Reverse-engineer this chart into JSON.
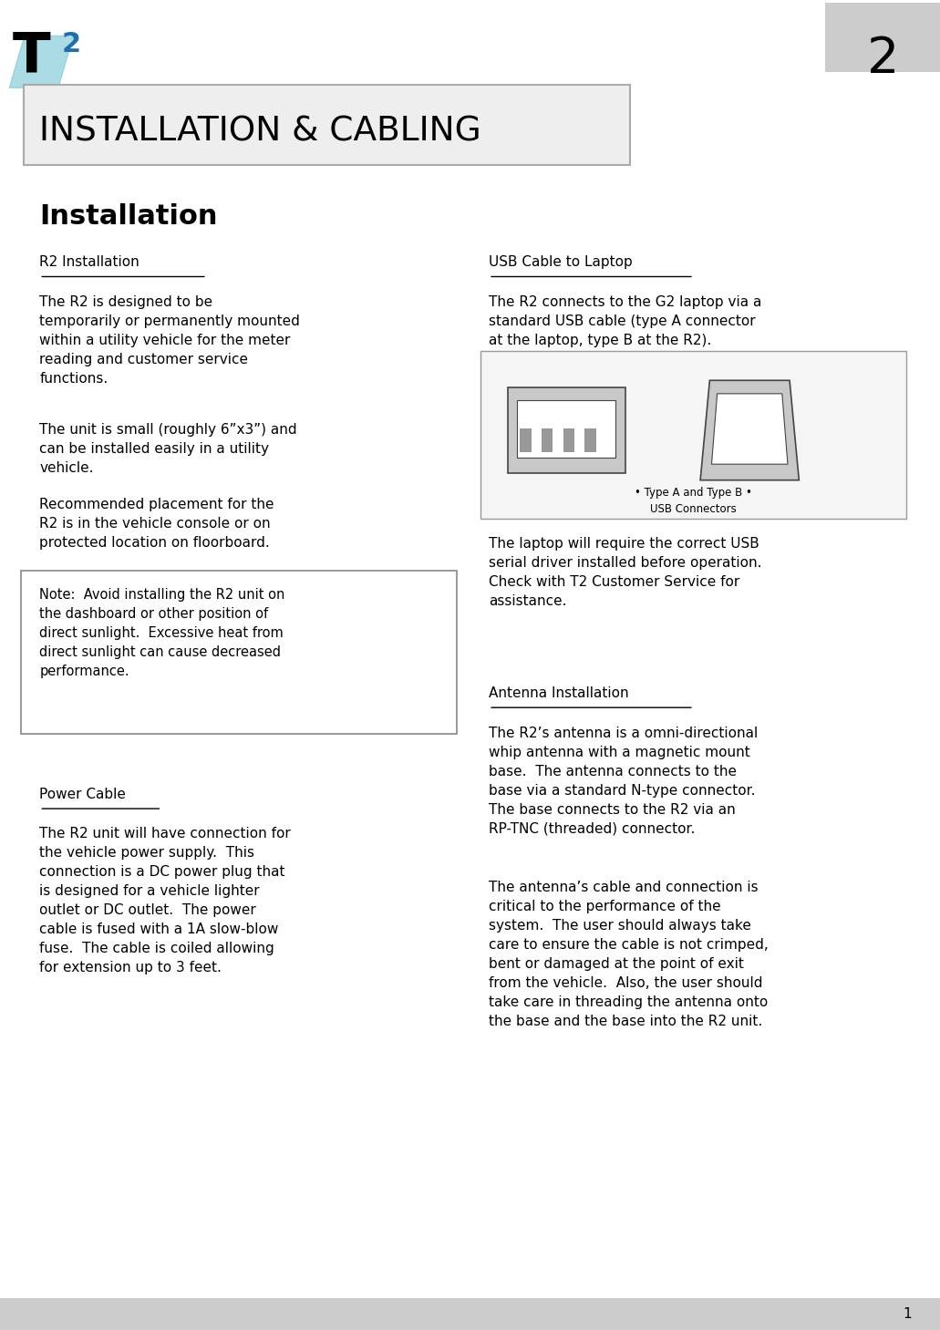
{
  "page_width": 10.31,
  "page_height": 14.59,
  "bg_color": "#ffffff",
  "chapter_number": "2",
  "chapter_bg": "#cccccc",
  "header_title": "INSTALLATION & CABLING",
  "section_title": "Installation",
  "subsection1_title": "R2 Installation",
  "para1": "The R2 is designed to be\ntemporarily or permanently mounted\nwithin a utility vehicle for the meter\nreading and customer service\nfunctions.",
  "para2": "The unit is small (roughly 6”x3”) and\ncan be installed easily in a utility\nvehicle.",
  "para3": "Recommended placement for the\nR2 is in the vehicle console or on\nprotected location on floorboard.",
  "note_text": "Note:  Avoid installing the R2 unit on\nthe dashboard or other position of\ndirect sunlight.  Excessive heat from\ndirect sunlight can cause decreased\nperformance.",
  "power_title": "Power Cable",
  "power_para": "The R2 unit will have connection for\nthe vehicle power supply.  This\nconnection is a DC power plug that\nis designed for a vehicle lighter\noutlet or DC outlet.  The power\ncable is fused with a 1A slow-blow\nfuse.  The cable is coiled allowing\nfor extension up to 3 feet.",
  "usb_title": "USB Cable to Laptop",
  "usb_para1": "The R2 connects to the G2 laptop via a\nstandard USB cable (type A connector\nat the laptop, type B at the R2).",
  "usb_para2": "The laptop will require the correct USB\nserial driver installed before operation.\nCheck with T2 Customer Service for\nassistance.",
  "antenna_title": "Antenna Installation",
  "antenna_para1": "The R2’s antenna is a omni-directional\nwhip antenna with a magnetic mount\nbase.  The antenna connects to the\nbase via a standard N-type connector.\nThe base connects to the R2 via an\nRP-TNC (threaded) connector.",
  "antenna_para2": "The antenna’s cable and connection is\ncritical to the performance of the\nsystem.  The user should always take\ncare to ensure the cable is not crimped,\nbent or damaged at the point of exit\nfrom the vehicle.  Also, the user should\ntake care in threading the antenna onto\nthe base and the base into the R2 unit.",
  "page_number": "1",
  "footer_bar_color": "#cccccc",
  "text_color": "#000000",
  "logo_T_color": "#000000",
  "logo_2_color": "#1e6fa8",
  "logo_diamond_color": "#7ec8d8"
}
